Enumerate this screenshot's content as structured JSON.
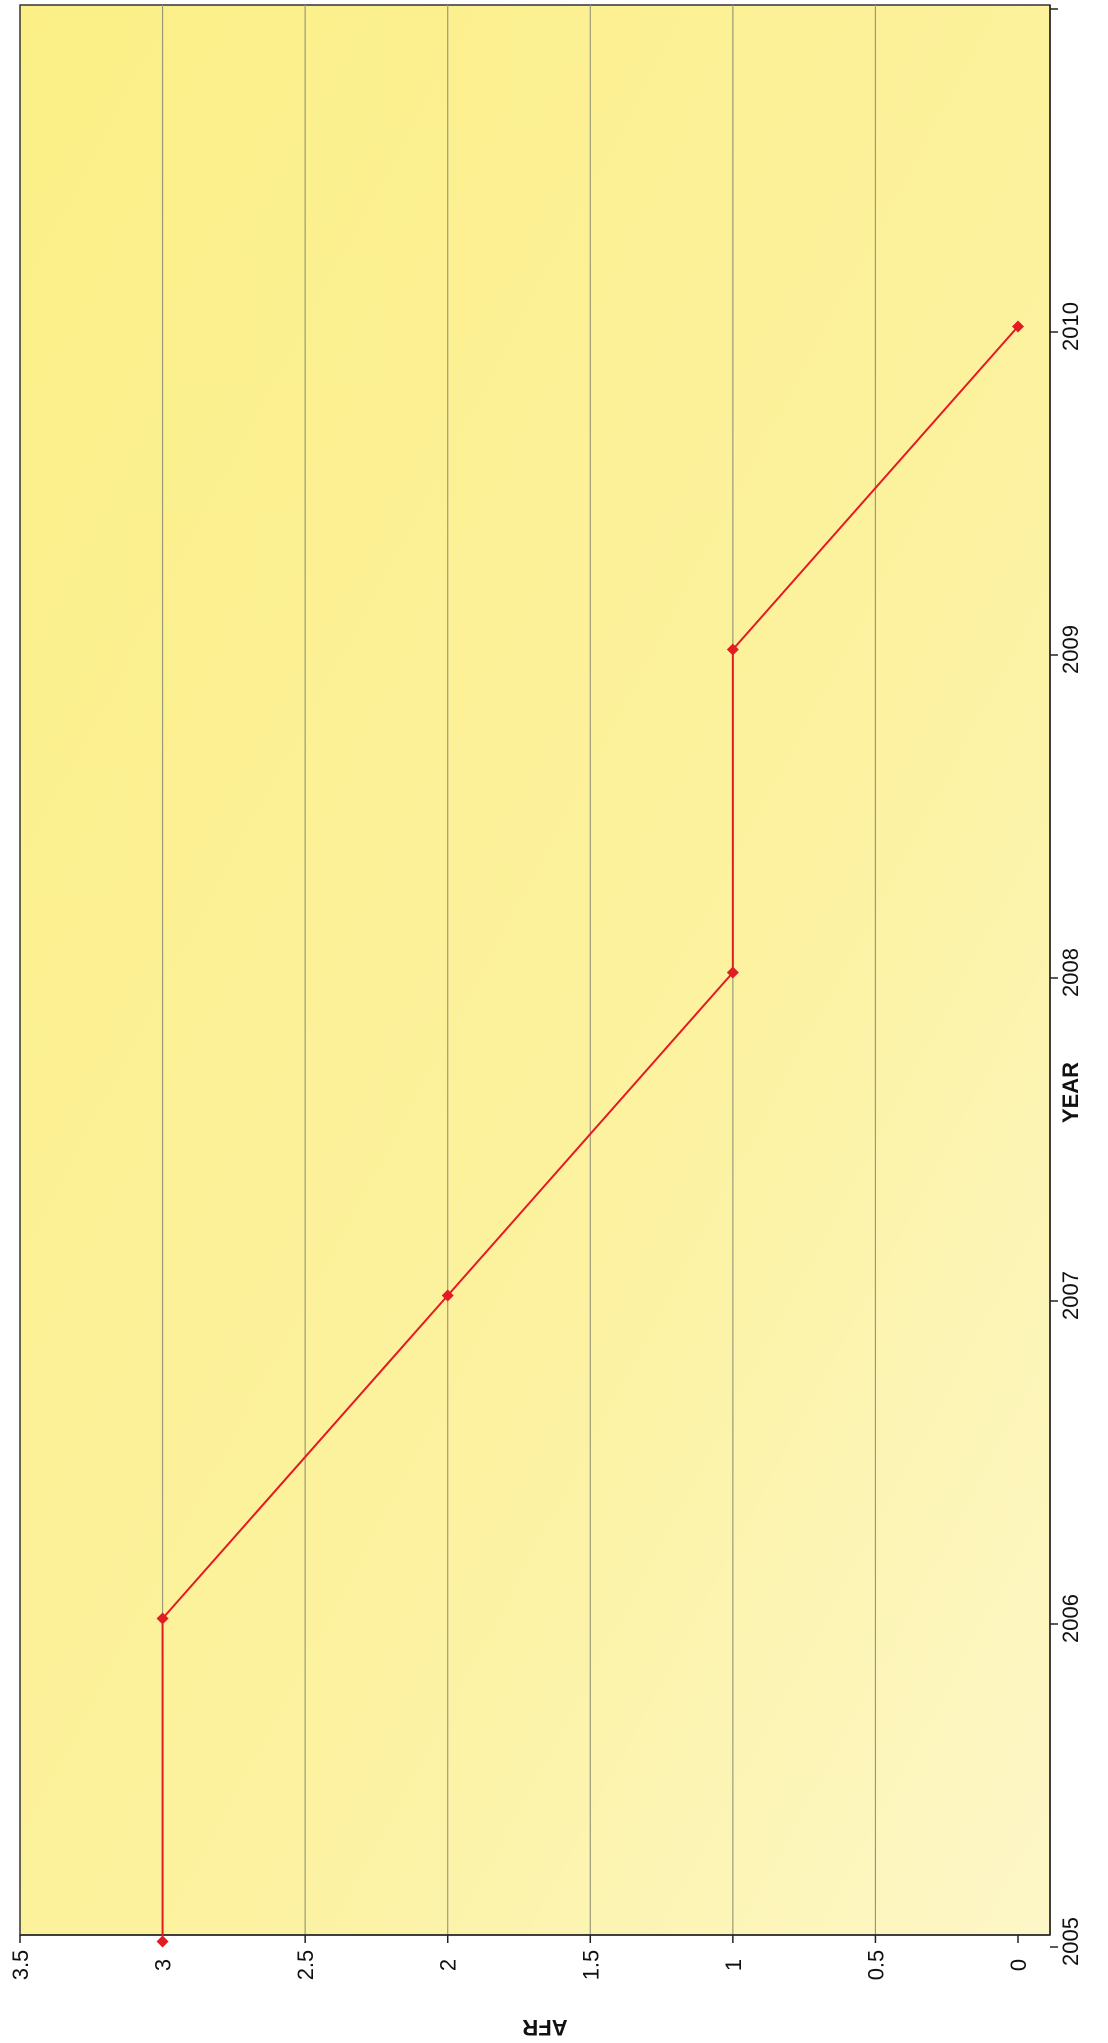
{
  "chart_data": {
    "type": "line",
    "orientation": "rotated-90-clockwise",
    "x": [
      2005,
      2006,
      2007,
      2008,
      2009,
      2010
    ],
    "series": [
      {
        "values": [
          3,
          3,
          2,
          1,
          1,
          0
        ],
        "color": "#e31b23"
      }
    ],
    "xlabel": "YEAR",
    "ylabel": "AFR",
    "xticks": [
      "2005",
      "2006",
      "2007",
      "2008",
      "2009",
      "2010"
    ],
    "yticks": [
      "0",
      "0.5",
      "1",
      "1.5",
      "2",
      "2.5",
      "3",
      "3.5"
    ],
    "ylim": [
      0,
      3.5
    ],
    "grid": true,
    "legend": "none",
    "background_color": "#fbf08a",
    "gridline_color": "#9a9a7a",
    "line_color": "#e31b23"
  }
}
